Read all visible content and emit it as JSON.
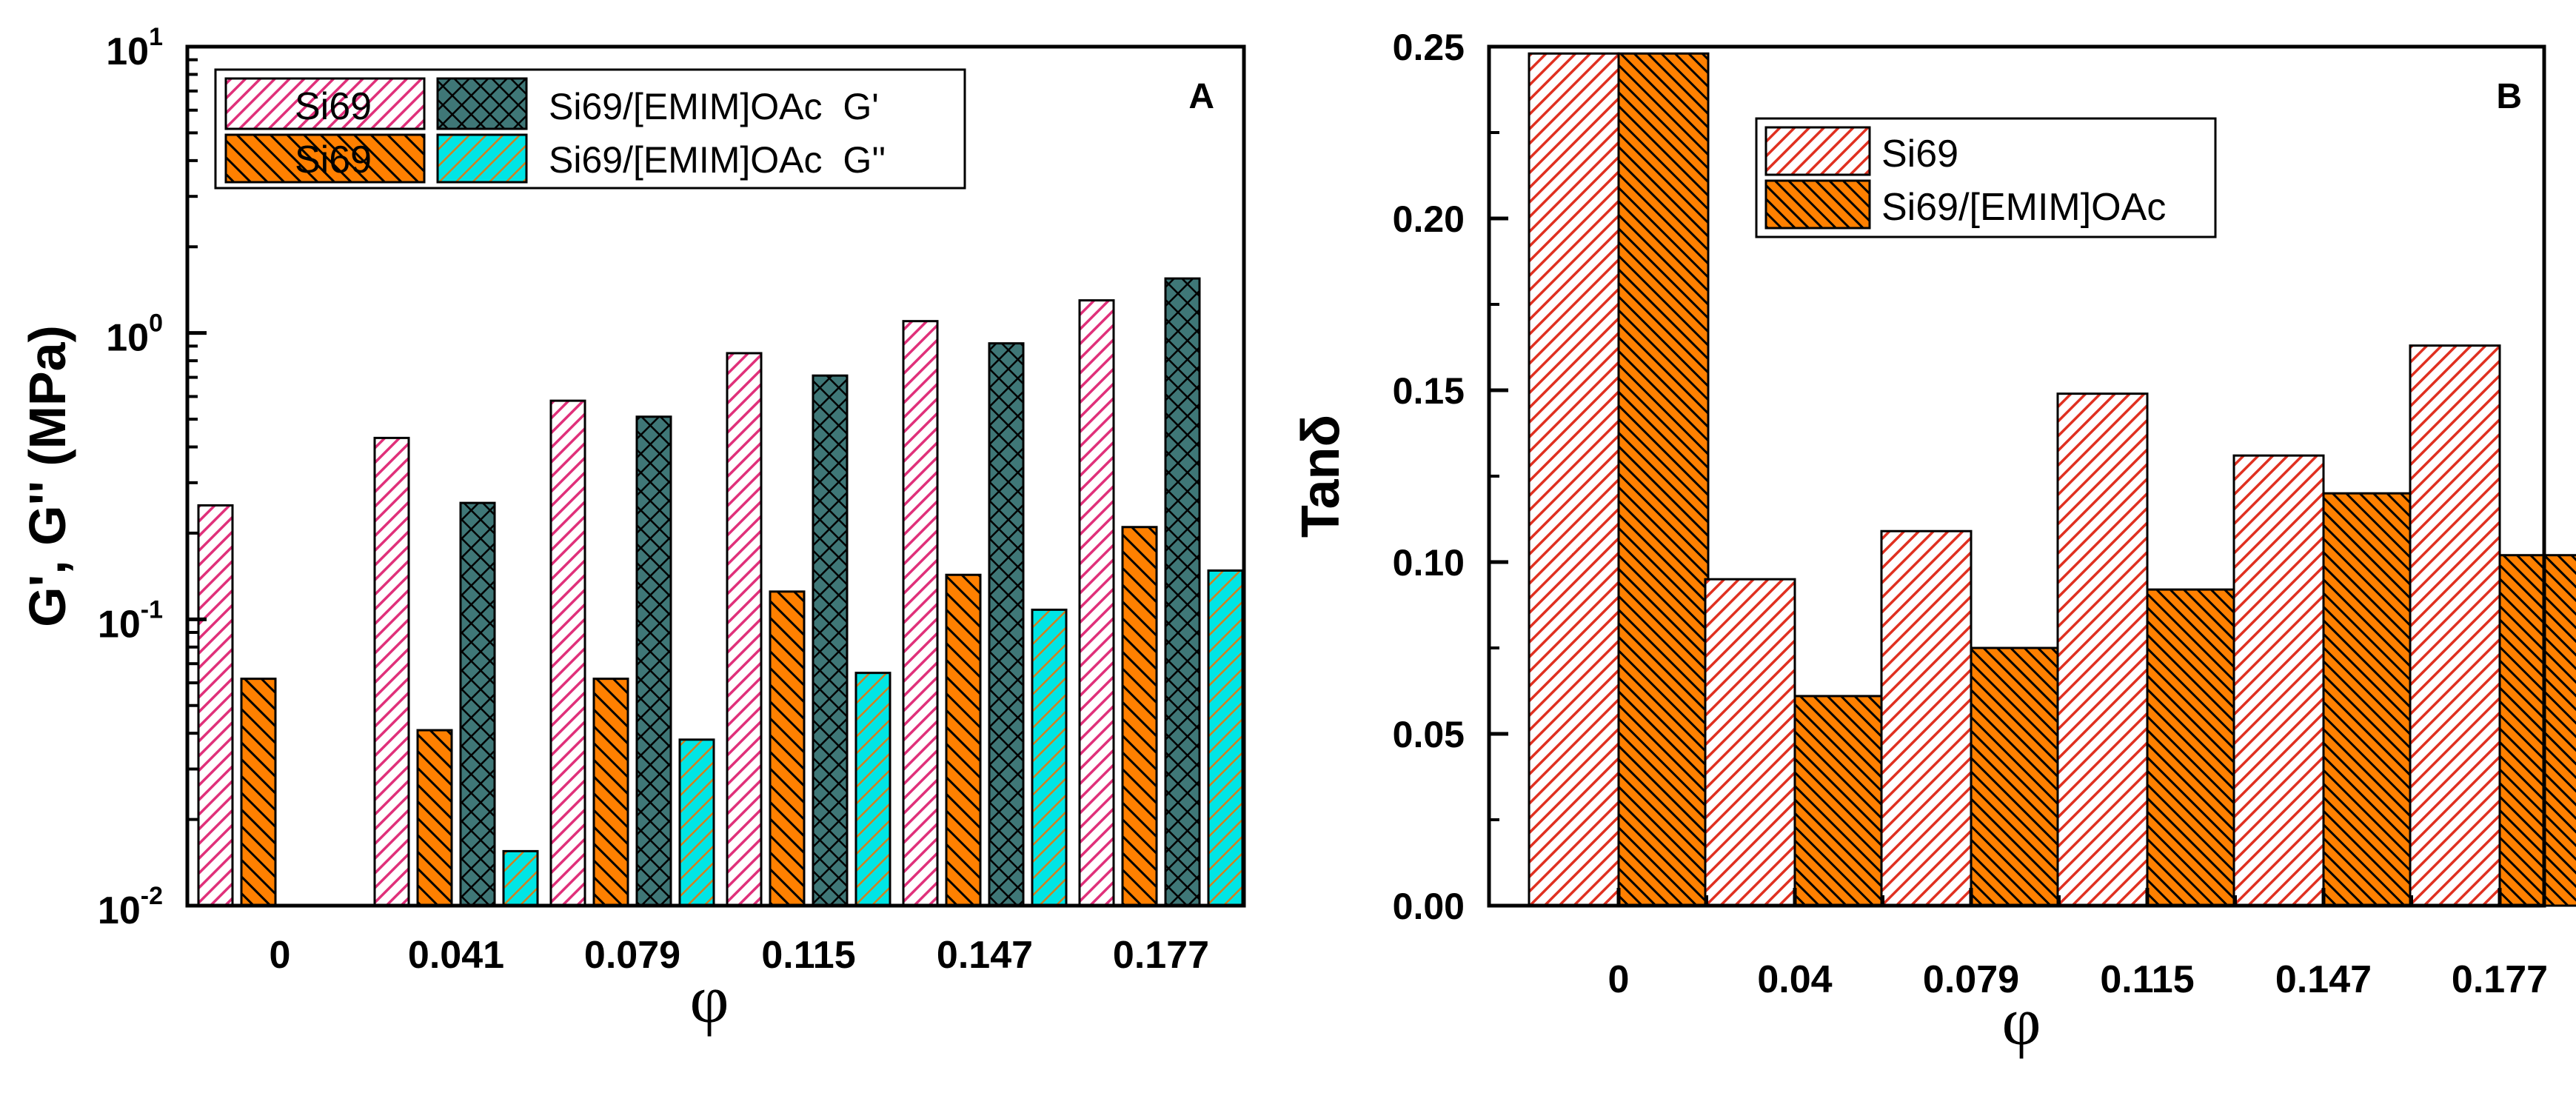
{
  "chart_data": [
    {
      "panel": "A",
      "type": "bar",
      "yscale": "log",
      "ylim": [
        0.01,
        10
      ],
      "ylabel": "G', G'' (MPa)",
      "xlabel": "φ",
      "categories": [
        "0",
        "0.041",
        "0.079",
        "0.115",
        "0.147",
        "0.177"
      ],
      "yticks": [
        {
          "value": 0.01,
          "base": "10",
          "exp": "-2"
        },
        {
          "value": 0.1,
          "base": "10",
          "exp": "-1"
        },
        {
          "value": 1,
          "base": "10",
          "exp": "0"
        },
        {
          "value": 10,
          "base": "10",
          "exp": "1"
        }
      ],
      "series": [
        {
          "name": "Si69",
          "values": [
            0.25,
            0.43,
            0.58,
            0.85,
            1.1,
            1.3
          ],
          "pattern": "pink-hatch",
          "color": "#e0307a"
        },
        {
          "name": "Si69",
          "values": [
            0.062,
            0.041,
            0.062,
            0.125,
            0.143,
            0.21
          ],
          "pattern": "orange-hatch",
          "color": "#ff8000"
        },
        {
          "name": "Si69/[EMIM]OAc  G'",
          "values": [
            null,
            0.255,
            0.51,
            0.71,
            0.92,
            1.55
          ],
          "pattern": "teal-crosshatch",
          "color": "#3f7777"
        },
        {
          "name": "Si69/[EMIM]OAc  G''",
          "values": [
            null,
            0.0155,
            0.038,
            0.065,
            0.108,
            0.148
          ],
          "pattern": "cyan-hatch",
          "color": "#00e5e5"
        }
      ],
      "legend": {
        "placement": "top-left",
        "rows": [
          {
            "left_label": "Si69",
            "right_label": "Si69/[EMIM]OAc  G'"
          },
          {
            "left_label": "Si69",
            "right_label": "Si69/[EMIM]OAc  G''"
          }
        ]
      }
    },
    {
      "panel": "B",
      "type": "bar",
      "yscale": "linear",
      "ylim": [
        0,
        0.25
      ],
      "ylabel": "Tanδ",
      "xlabel": "φ",
      "categories": [
        "0",
        "0.04",
        "0.079",
        "0.115",
        "0.147",
        "0.177"
      ],
      "yticks": [
        {
          "value": 0,
          "label": "0.00"
        },
        {
          "value": 0.05,
          "label": "0.05"
        },
        {
          "value": 0.1,
          "label": "0.10"
        },
        {
          "value": 0.15,
          "label": "0.15"
        },
        {
          "value": 0.2,
          "label": "0.20"
        },
        {
          "value": 0.25,
          "label": "0.25"
        }
      ],
      "series": [
        {
          "name": "Si69",
          "values": [
            0.248,
            0.095,
            0.109,
            0.149,
            0.131,
            0.163
          ],
          "pattern": "red-hatch",
          "color": "#e03020"
        },
        {
          "name": "Si69/[EMIM]OAc",
          "values": [
            0.248,
            0.061,
            0.075,
            0.092,
            0.12,
            0.102
          ],
          "pattern": "orange-dense-hatch",
          "color": "#ff8000"
        }
      ],
      "legend": {
        "placement": "upper-center"
      }
    }
  ]
}
